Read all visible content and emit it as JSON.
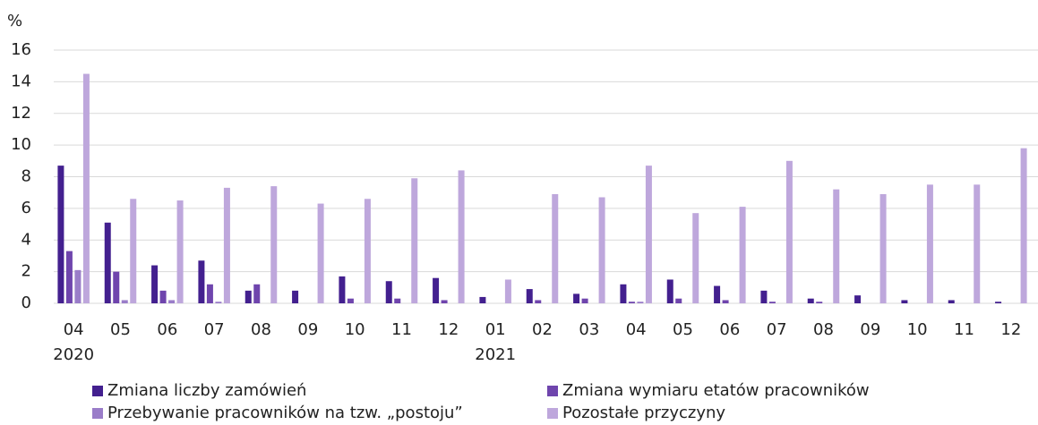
{
  "chart_data": {
    "type": "bar",
    "y_unit": "%",
    "categories": [
      "04",
      "05",
      "06",
      "07",
      "08",
      "09",
      "10",
      "11",
      "12",
      "01",
      "02",
      "03",
      "04",
      "05",
      "06",
      "07",
      "08",
      "09",
      "10",
      "11",
      "12"
    ],
    "years": [
      "2020",
      null,
      null,
      null,
      null,
      null,
      null,
      null,
      null,
      "2021",
      null,
      null,
      null,
      null,
      null,
      null,
      null,
      null,
      null,
      null,
      null
    ],
    "series": [
      {
        "name": "Zmiana liczby zamówień",
        "color": "#43208f",
        "values": [
          8.7,
          5.1,
          2.4,
          2.7,
          0.8,
          0.8,
          1.7,
          1.4,
          1.6,
          0.4,
          0.9,
          0.6,
          1.2,
          1.5,
          1.1,
          0.8,
          0.3,
          0.5,
          0.2,
          0.2,
          0.1
        ]
      },
      {
        "name": "Zmiana wymiaru etatów pracowników",
        "color": "#6f45ad",
        "values": [
          3.3,
          2.0,
          0.8,
          1.2,
          1.2,
          0,
          0.3,
          0.3,
          0.2,
          0,
          0.2,
          0.3,
          0.1,
          0.3,
          0.2,
          0.1,
          0.1,
          0,
          0,
          0,
          0
        ]
      },
      {
        "name": "Przebywanie pracowników na tzw. „postoju”",
        "color": "#9a7dc9",
        "values": [
          2.1,
          0.2,
          0.2,
          0.1,
          0,
          0,
          0,
          0,
          0,
          0,
          0,
          0,
          0.1,
          0,
          0,
          0,
          0,
          0,
          0,
          0,
          0
        ]
      },
      {
        "name": "Pozostałe przyczyny",
        "color": "#bea7dc",
        "values": [
          14.5,
          6.6,
          6.5,
          7.3,
          7.4,
          6.3,
          6.6,
          7.9,
          8.4,
          1.5,
          6.9,
          6.7,
          8.7,
          5.7,
          6.1,
          9.0,
          7.2,
          6.9,
          7.5,
          7.5,
          9.8
        ]
      }
    ],
    "ylim": [
      0,
      16
    ],
    "yticks": [
      0,
      2,
      4,
      6,
      8,
      10,
      12,
      14,
      16
    ],
    "grid": true
  }
}
